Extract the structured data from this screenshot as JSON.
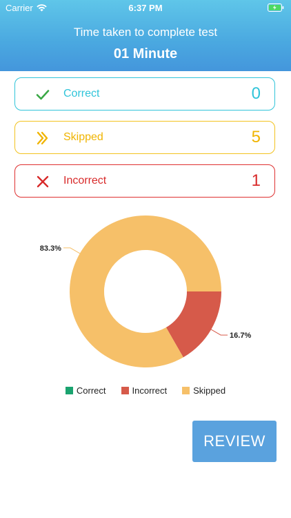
{
  "status_bar": {
    "carrier": "Carrier",
    "time": "6:37 PM"
  },
  "header": {
    "subtitle": "Time taken to complete test",
    "title": "01 Minute"
  },
  "results": {
    "correct": {
      "label": "Correct",
      "count": "0",
      "color": "#2fc4d9",
      "icon": "check-icon"
    },
    "skipped": {
      "label": "Skipped",
      "count": "5",
      "color": "#f0b400",
      "icon": "double-chevron-icon"
    },
    "incorrect": {
      "label": "Incorrect",
      "count": "1",
      "color": "#d82a2a",
      "icon": "x-icon"
    }
  },
  "chart_data": {
    "type": "pie",
    "donut": true,
    "slices": [
      {
        "name": "Correct",
        "value": 0,
        "percent_label": "",
        "color": "#1aa36f"
      },
      {
        "name": "Incorrect",
        "value": 16.7,
        "percent_label": "16.7%",
        "color": "#d65a4a"
      },
      {
        "name": "Skipped",
        "value": 83.3,
        "percent_label": "83.3%",
        "color": "#f6c069"
      }
    ],
    "legend": [
      "Correct",
      "Incorrect",
      "Skipped"
    ],
    "legend_position": "bottom"
  },
  "review_button": {
    "label": "REVIEW"
  }
}
